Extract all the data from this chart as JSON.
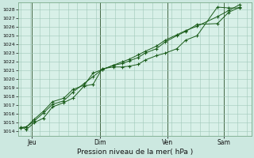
{
  "title": "Pression niveau de la mer( hPa )",
  "background_color": "#cce8e0",
  "plot_bg_color": "#d8f0e8",
  "grid_color": "#a0c8b8",
  "line_color": "#1a5c1a",
  "ylim": [
    1013.5,
    1028.8
  ],
  "yticks": [
    1014,
    1015,
    1016,
    1017,
    1018,
    1019,
    1020,
    1021,
    1022,
    1023,
    1024,
    1025,
    1026,
    1027,
    1028
  ],
  "xtick_labels": [
    "Jeu",
    "Dim",
    "Ven",
    "Sam"
  ],
  "xtick_positions": [
    0.05,
    0.35,
    0.65,
    0.9
  ],
  "vline_positions": [
    0.05,
    0.35,
    0.65,
    0.9
  ],
  "series1_x": [
    0.0,
    0.025,
    0.06,
    0.1,
    0.14,
    0.19,
    0.23,
    0.28,
    0.32,
    0.36,
    0.41,
    0.45,
    0.48,
    0.52,
    0.55,
    0.6,
    0.64,
    0.69,
    0.73,
    0.78,
    0.87,
    0.92,
    0.97
  ],
  "series1_y": [
    1014.5,
    1014.2,
    1015.0,
    1015.5,
    1016.8,
    1017.3,
    1017.8,
    1019.2,
    1019.4,
    1021.2,
    1021.4,
    1021.4,
    1021.5,
    1021.7,
    1022.2,
    1022.7,
    1023.0,
    1023.5,
    1024.5,
    1025.0,
    1028.3,
    1028.2,
    1028.2
  ],
  "series2_x": [
    0.0,
    0.025,
    0.06,
    0.1,
    0.14,
    0.19,
    0.23,
    0.28,
    0.32,
    0.36,
    0.41,
    0.45,
    0.48,
    0.52,
    0.55,
    0.6,
    0.64,
    0.69,
    0.73,
    0.78,
    0.87,
    0.92,
    0.97
  ],
  "series2_y": [
    1014.4,
    1014.5,
    1015.4,
    1016.3,
    1017.4,
    1017.8,
    1018.8,
    1019.3,
    1020.7,
    1021.1,
    1021.6,
    1021.8,
    1022.1,
    1022.5,
    1023.0,
    1023.5,
    1024.3,
    1025.0,
    1025.5,
    1026.3,
    1026.4,
    1027.7,
    1028.3
  ],
  "series3_x": [
    0.0,
    0.025,
    0.06,
    0.1,
    0.14,
    0.19,
    0.23,
    0.28,
    0.32,
    0.36,
    0.41,
    0.45,
    0.48,
    0.52,
    0.55,
    0.6,
    0.64,
    0.69,
    0.73,
    0.78,
    0.87,
    0.92,
    0.97
  ],
  "series3_y": [
    1014.4,
    1014.5,
    1015.2,
    1016.1,
    1017.1,
    1017.5,
    1018.5,
    1019.5,
    1020.3,
    1021.1,
    1021.6,
    1022.0,
    1022.3,
    1022.8,
    1023.2,
    1023.8,
    1024.5,
    1025.1,
    1025.6,
    1026.1,
    1027.2,
    1027.9,
    1028.6
  ]
}
